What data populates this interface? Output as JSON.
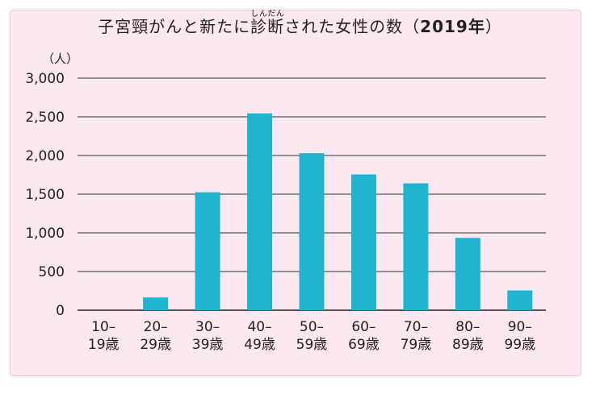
{
  "chart_data": {
    "type": "bar",
    "title_before": "子宮頸がんと新たに",
    "title_ruby_base": "診断",
    "title_ruby_text": "しんだん",
    "title_after": "された女性の数（",
    "title_year": "2019年",
    "title_close": "）",
    "ylabel": "（人）",
    "ylim": [
      0,
      3000
    ],
    "yticks": [
      0,
      500,
      1000,
      1500,
      2000,
      2500,
      3000
    ],
    "ytick_labels": [
      "0",
      "500",
      "1,000",
      "1,500",
      "2,000",
      "2,500",
      "3,000"
    ],
    "categories": [
      [
        "10–",
        "19歳"
      ],
      [
        "20–",
        "29歳"
      ],
      [
        "30–",
        "39歳"
      ],
      [
        "40–",
        "49歳"
      ],
      [
        "50–",
        "59歳"
      ],
      [
        "60–",
        "69歳"
      ],
      [
        "70–",
        "79歳"
      ],
      [
        "80–",
        "89歳"
      ],
      [
        "90–",
        "99歳"
      ]
    ],
    "values": [
      0,
      165,
      1525,
      2545,
      2030,
      1755,
      1640,
      935,
      255
    ],
    "bar_color": "#1fb4cf",
    "grid": true
  }
}
